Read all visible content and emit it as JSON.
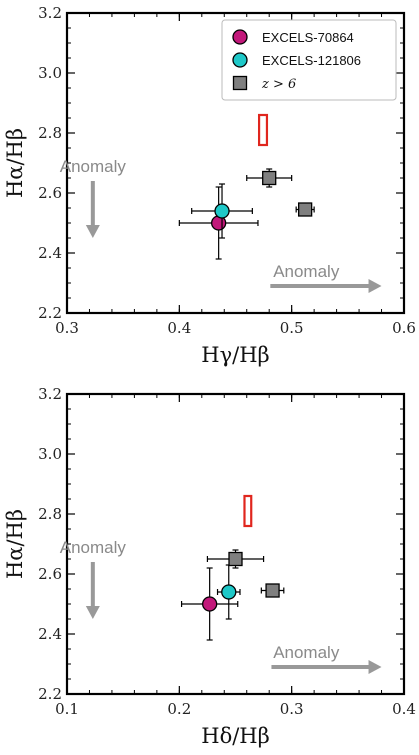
{
  "colors": {
    "excels_70864": "#c2187a",
    "excels_121806": "#1ec8c8",
    "z_gt_6": "#7f7f7f",
    "anomaly": "#999999",
    "case_b_box": "#e0261e"
  },
  "icons": {
    "anomaly_arrow": "arrow-icon"
  },
  "chart_data": [
    {
      "type": "scatter",
      "xlabel": "Hγ/Hβ",
      "ylabel": "Hα/Hβ",
      "xlim": [
        0.3,
        0.6
      ],
      "ylim": [
        2.2,
        3.2
      ],
      "xticks": [
        0.3,
        0.4,
        0.5,
        0.6
      ],
      "yticks": [
        2.2,
        2.4,
        2.6,
        2.8,
        3.0,
        3.2
      ],
      "xtick_labels": [
        "0.3",
        "0.4",
        "0.5",
        "0.6"
      ],
      "ytick_labels": [
        "2.2",
        "2.4",
        "2.6",
        "2.8",
        "3.0",
        "3.2"
      ],
      "legend": {
        "placement": "top-right",
        "entries": [
          "EXCELS-70864",
          "EXCELS-121806",
          "z > 6"
        ]
      },
      "series": [
        {
          "name": "EXCELS-70864",
          "marker": "circle",
          "points": [
            {
              "x": 0.435,
              "y": 2.5,
              "xerr": 0.035,
              "yerr": 0.12
            }
          ]
        },
        {
          "name": "EXCELS-121806",
          "marker": "circle",
          "points": [
            {
              "x": 0.438,
              "y": 2.54,
              "xerr": 0.027,
              "yerr": 0.09
            }
          ]
        },
        {
          "name": "z > 6",
          "marker": "square",
          "points": [
            {
              "x": 0.48,
              "y": 2.65,
              "xerr": 0.02,
              "yerr": 0.03
            },
            {
              "x": 0.512,
              "y": 2.545,
              "xerr": 0.008,
              "yerr": 0.012
            }
          ]
        }
      ],
      "case_b_region": {
        "x": [
          0.471,
          0.478
        ],
        "y": [
          2.76,
          2.86
        ]
      },
      "annotations": [
        {
          "text": "Anomaly",
          "direction": "down",
          "arrow_x": 0.323,
          "arrow_y": [
            2.64,
            2.45
          ],
          "text_x": 0.323,
          "text_y": 2.69
        },
        {
          "text": "Anomaly",
          "direction": "right",
          "arrow_x": [
            0.481,
            0.58
          ],
          "arrow_y": 2.29,
          "text_x": 0.513,
          "text_y": 2.34
        }
      ]
    },
    {
      "type": "scatter",
      "xlabel": "Hδ/Hβ",
      "ylabel": "Hα/Hβ",
      "xlim": [
        0.1,
        0.4
      ],
      "ylim": [
        2.2,
        3.2
      ],
      "xticks": [
        0.1,
        0.2,
        0.3,
        0.4
      ],
      "yticks": [
        2.2,
        2.4,
        2.6,
        2.8,
        3.0,
        3.2
      ],
      "xtick_labels": [
        "0.1",
        "0.2",
        "0.3",
        "0.4"
      ],
      "ytick_labels": [
        "2.2",
        "2.4",
        "2.6",
        "2.8",
        "3.0",
        "3.2"
      ],
      "series": [
        {
          "name": "EXCELS-70864",
          "marker": "circle",
          "points": [
            {
              "x": 0.227,
              "y": 2.5,
              "xerr": 0.025,
              "yerr": 0.12
            }
          ]
        },
        {
          "name": "EXCELS-121806",
          "marker": "circle",
          "points": [
            {
              "x": 0.244,
              "y": 2.54,
              "xerr": 0.01,
              "yerr": 0.09
            }
          ]
        },
        {
          "name": "z > 6",
          "marker": "square",
          "points": [
            {
              "x": 0.25,
              "y": 2.65,
              "xerr": 0.025,
              "yerr": 0.03
            },
            {
              "x": 0.283,
              "y": 2.545,
              "xerr": 0.01,
              "yerr": 0.012
            }
          ]
        }
      ],
      "case_b_region": {
        "x": [
          0.258,
          0.264
        ],
        "y": [
          2.76,
          2.86
        ]
      },
      "annotations": [
        {
          "text": "Anomaly",
          "direction": "down",
          "arrow_x": 0.123,
          "arrow_y": [
            2.64,
            2.45
          ],
          "text_x": 0.123,
          "text_y": 2.69
        },
        {
          "text": "Anomaly",
          "direction": "right",
          "arrow_x": [
            0.282,
            0.38
          ],
          "arrow_y": 2.29,
          "text_x": 0.313,
          "text_y": 2.34
        }
      ]
    }
  ]
}
